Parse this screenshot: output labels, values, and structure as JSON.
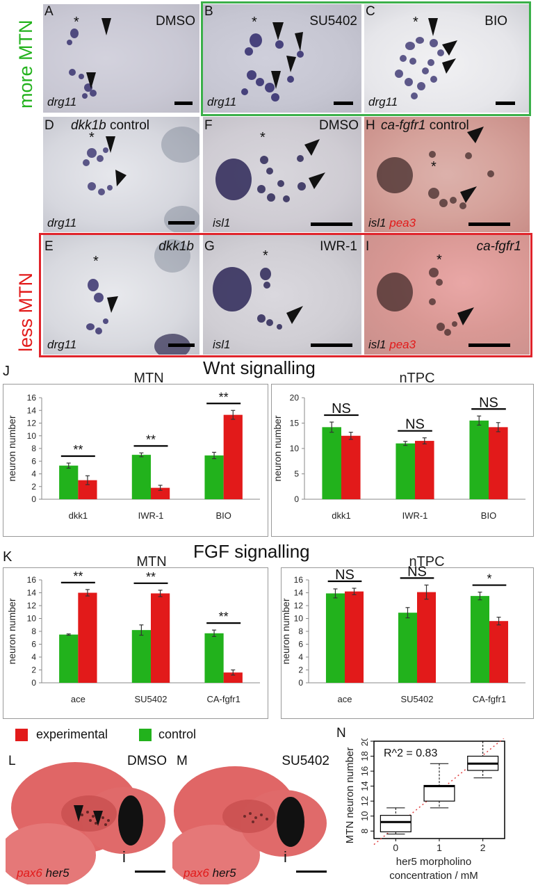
{
  "panels": {
    "A": {
      "letter": "A",
      "treatment": "DMSO",
      "gene": "drg11"
    },
    "B": {
      "letter": "B",
      "treatment": "SU5402",
      "gene": "drg11"
    },
    "C": {
      "letter": "C",
      "treatment": "BIO",
      "gene": "drg11"
    },
    "D": {
      "letter": "D",
      "treatment_italic": "dkk1b",
      "treatment_suffix": " control",
      "gene": "drg11"
    },
    "E": {
      "letter": "E",
      "treatment_italic": "dkk1b",
      "gene": "drg11"
    },
    "F": {
      "letter": "F",
      "treatment": "DMSO",
      "gene": "isl1"
    },
    "G": {
      "letter": "G",
      "treatment": "IWR-1",
      "gene": "isl1"
    },
    "H": {
      "letter": "H",
      "treatment_italic": "ca-fgfr1",
      "treatment_suffix": " control",
      "gene1": "isl1",
      "gene2": "pea3"
    },
    "I": {
      "letter": "I",
      "treatment_italic": "ca-fgfr1",
      "gene1": "isl1",
      "gene2": "pea3"
    },
    "L": {
      "letter": "L",
      "treatment": "DMSO",
      "gene1": "pax6",
      "gene2": "her5",
      "mark": "i"
    },
    "M": {
      "letter": "M",
      "treatment": "SU5402",
      "gene1": "pax6",
      "gene2": "her5",
      "mark": "i"
    },
    "N": {
      "letter": "N"
    }
  },
  "side_labels": {
    "more": "more MTN",
    "less": "less MTN"
  },
  "colors": {
    "green": "#22b21c",
    "red": "#e21a1a",
    "green_box": "#3bb04a",
    "red_box": "#e0242b"
  },
  "sections": {
    "J": {
      "letter": "J",
      "title": "Wnt signalling"
    },
    "K": {
      "letter": "K",
      "title": "FGF signalling"
    }
  },
  "legend": {
    "experimental": "experimental",
    "control": "control"
  },
  "chart_data": [
    {
      "id": "J-MTN",
      "type": "bar",
      "title": "MTN",
      "ylabel": "neuron number",
      "categories": [
        "dkk1",
        "IWR-1",
        "BIO"
      ],
      "ylim": [
        0,
        16
      ],
      "yticks": [
        0,
        2,
        4,
        6,
        8,
        10,
        12,
        14,
        16
      ],
      "series": [
        {
          "name": "control",
          "color": "#22b21c",
          "values": [
            5.3,
            7.0,
            6.9
          ],
          "errors": [
            0.4,
            0.3,
            0.5
          ]
        },
        {
          "name": "experimental",
          "color": "#e21a1a",
          "values": [
            3.0,
            1.8,
            13.3
          ],
          "errors": [
            0.7,
            0.4,
            0.7
          ]
        }
      ],
      "significance": [
        "**",
        "**",
        "**"
      ]
    },
    {
      "id": "J-nTPC",
      "type": "bar",
      "title": "nTPC",
      "ylabel": "neuron number",
      "categories": [
        "dkk1",
        "IWR-1",
        "BIO"
      ],
      "ylim": [
        0,
        20
      ],
      "yticks": [
        0,
        5,
        10,
        15,
        20
      ],
      "series": [
        {
          "name": "control",
          "color": "#22b21c",
          "values": [
            14.2,
            11.0,
            15.5
          ],
          "errors": [
            1.0,
            0.4,
            0.9
          ]
        },
        {
          "name": "experimental",
          "color": "#e21a1a",
          "values": [
            12.5,
            11.5,
            14.2
          ],
          "errors": [
            0.7,
            0.6,
            0.9
          ]
        }
      ],
      "significance": [
        "NS",
        "NS",
        "NS"
      ]
    },
    {
      "id": "K-MTN",
      "type": "bar",
      "title": "MTN",
      "ylabel": "neuron number",
      "categories": [
        "ace",
        "SU5402",
        "CA-fgfr1"
      ],
      "ylim": [
        0,
        16
      ],
      "yticks": [
        0,
        2,
        4,
        6,
        8,
        10,
        12,
        14,
        16
      ],
      "series": [
        {
          "name": "control",
          "color": "#22b21c",
          "values": [
            7.5,
            8.2,
            7.7
          ],
          "errors": [
            0.1,
            0.8,
            0.5
          ]
        },
        {
          "name": "experimental",
          "color": "#e21a1a",
          "values": [
            14.0,
            13.9,
            1.6
          ],
          "errors": [
            0.5,
            0.5,
            0.4
          ]
        }
      ],
      "significance": [
        "**",
        "**",
        "**"
      ]
    },
    {
      "id": "K-nTPC",
      "type": "bar",
      "title": "nTPC",
      "ylabel": "neuron number",
      "categories": [
        "ace",
        "SU5402",
        "CA-fgfr1"
      ],
      "ylim": [
        0,
        16
      ],
      "yticks": [
        0,
        2,
        4,
        6,
        8,
        10,
        12,
        14,
        16
      ],
      "series": [
        {
          "name": "control",
          "color": "#22b21c",
          "values": [
            13.9,
            10.9,
            13.5
          ],
          "errors": [
            0.7,
            0.8,
            0.6
          ]
        },
        {
          "name": "experimental",
          "color": "#e21a1a",
          "values": [
            14.2,
            14.1,
            9.6
          ],
          "errors": [
            0.5,
            1.1,
            0.6
          ]
        }
      ],
      "significance": [
        "NS",
        "NS",
        "*"
      ]
    },
    {
      "id": "N",
      "type": "box",
      "xlabel": "her5 morpholino concentration / mM",
      "ylabel": "MTN neuron number",
      "annotation": "R^2 = 0.83",
      "categories": [
        "0",
        "1",
        "2"
      ],
      "ylim": [
        7,
        20
      ],
      "yticks": [
        8,
        10,
        12,
        14,
        16,
        18,
        20
      ],
      "boxes": [
        {
          "min": 7.6,
          "q1": 7.9,
          "median": 9.2,
          "q3": 10.1,
          "max": 11.1
        },
        {
          "min": 11.1,
          "q1": 12.0,
          "median": 14.0,
          "q3": 14.1,
          "max": 17.0
        },
        {
          "min": 15.1,
          "q1": 16.1,
          "median": 17.0,
          "q3": 18.0,
          "max": 20.0
        }
      ]
    }
  ]
}
